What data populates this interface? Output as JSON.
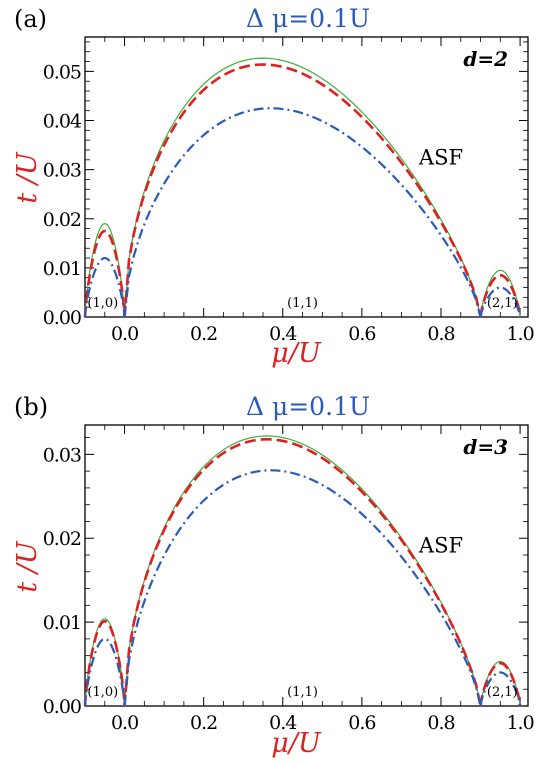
{
  "chart_data": [
    {
      "type": "line",
      "panel_label": "(a)",
      "title": "Δ μ=0.1U",
      "xlabel": "μ/U",
      "ylabel": "t /U",
      "xlim": [
        -0.1,
        1.02
      ],
      "ylim": [
        0,
        0.057
      ],
      "xticks": [
        0.0,
        0.2,
        0.4,
        0.6,
        0.8,
        1.0
      ],
      "xtick_labels": [
        "0.0",
        "0.2",
        "0.4",
        "0.6",
        "0.8",
        "1.0"
      ],
      "yticks": [
        0.0,
        0.01,
        0.02,
        0.03,
        0.04,
        0.05
      ],
      "ytick_labels": [
        "0.00",
        "0.01",
        "0.02",
        "0.03",
        "0.04",
        "0.05"
      ],
      "annotations": [
        {
          "text": "d=2",
          "role": "dimension"
        },
        {
          "text": "ASF",
          "role": "phase",
          "x": 0.8,
          "y": 0.031
        },
        {
          "text": "(1,0)",
          "role": "lobe",
          "x": -0.055,
          "y": 0.002
        },
        {
          "text": "(1,1)",
          "role": "lobe",
          "x": 0.45,
          "y": 0.002
        },
        {
          "text": "(2,1)",
          "role": "lobe",
          "x": 0.955,
          "y": 0.002
        }
      ],
      "grid": false,
      "series": [
        {
          "style": "solid",
          "color": "#3fae3f",
          "lobes": [
            {
              "x0": -0.1,
              "x1": 0.0,
              "peak_x": -0.05,
              "peak": 0.019
            },
            {
              "x0": 0.0,
              "x1": 0.9,
              "peak_x": 0.35,
              "peak": 0.0527
            },
            {
              "x0": 0.9,
              "x1": 1.0,
              "peak_x": 0.95,
              "peak": 0.0095
            }
          ]
        },
        {
          "style": "dashed",
          "color": "#e02020",
          "lobes": [
            {
              "x0": -0.1,
              "x1": 0.0,
              "peak_x": -0.05,
              "peak": 0.0175
            },
            {
              "x0": 0.0,
              "x1": 0.9,
              "peak_x": 0.35,
              "peak": 0.0514
            },
            {
              "x0": 0.9,
              "x1": 1.0,
              "peak_x": 0.95,
              "peak": 0.0085
            }
          ]
        },
        {
          "style": "dashdot",
          "color": "#2a5bb8",
          "lobes": [
            {
              "x0": -0.1,
              "x1": 0.0,
              "peak_x": -0.05,
              "peak": 0.012
            },
            {
              "x0": 0.0,
              "x1": 0.9,
              "peak_x": 0.37,
              "peak": 0.0425
            },
            {
              "x0": 0.9,
              "x1": 1.0,
              "peak_x": 0.95,
              "peak": 0.006
            }
          ]
        }
      ]
    },
    {
      "type": "line",
      "panel_label": "(b)",
      "title": "Δ μ=0.1U",
      "xlabel": "μ/U",
      "ylabel": "t /U",
      "xlim": [
        -0.1,
        1.02
      ],
      "ylim": [
        0,
        0.0335
      ],
      "xticks": [
        0.0,
        0.2,
        0.4,
        0.6,
        0.8,
        1.0
      ],
      "xtick_labels": [
        "0.0",
        "0.2",
        "0.4",
        "0.6",
        "0.8",
        "1.0"
      ],
      "yticks": [
        0.0,
        0.01,
        0.02,
        0.03
      ],
      "ytick_labels": [
        "0.00",
        "0.01",
        "0.02",
        "0.03"
      ],
      "annotations": [
        {
          "text": "d=3",
          "role": "dimension"
        },
        {
          "text": "ASF",
          "role": "phase",
          "x": 0.8,
          "y": 0.0183
        },
        {
          "text": "(1,0)",
          "role": "lobe",
          "x": -0.055,
          "y": 0.0012
        },
        {
          "text": "(1,1)",
          "role": "lobe",
          "x": 0.45,
          "y": 0.0012
        },
        {
          "text": "(2,1)",
          "role": "lobe",
          "x": 0.955,
          "y": 0.0012
        }
      ],
      "grid": false,
      "series": [
        {
          "style": "solid",
          "color": "#3fae3f",
          "lobes": [
            {
              "x0": -0.1,
              "x1": 0.0,
              "peak_x": -0.05,
              "peak": 0.0104
            },
            {
              "x0": 0.0,
              "x1": 0.9,
              "peak_x": 0.36,
              "peak": 0.0322
            },
            {
              "x0": 0.9,
              "x1": 1.0,
              "peak_x": 0.95,
              "peak": 0.0053
            }
          ]
        },
        {
          "style": "dashed",
          "color": "#e02020",
          "lobes": [
            {
              "x0": -0.1,
              "x1": 0.0,
              "peak_x": -0.05,
              "peak": 0.0101
            },
            {
              "x0": 0.0,
              "x1": 0.9,
              "peak_x": 0.36,
              "peak": 0.0318
            },
            {
              "x0": 0.9,
              "x1": 1.0,
              "peak_x": 0.95,
              "peak": 0.0051
            }
          ]
        },
        {
          "style": "dashdot",
          "color": "#2a5bb8",
          "lobes": [
            {
              "x0": -0.1,
              "x1": 0.0,
              "peak_x": -0.05,
              "peak": 0.008
            },
            {
              "x0": 0.0,
              "x1": 0.9,
              "peak_x": 0.37,
              "peak": 0.0281
            },
            {
              "x0": 0.9,
              "x1": 1.0,
              "peak_x": 0.95,
              "peak": 0.004
            }
          ]
        }
      ]
    }
  ]
}
